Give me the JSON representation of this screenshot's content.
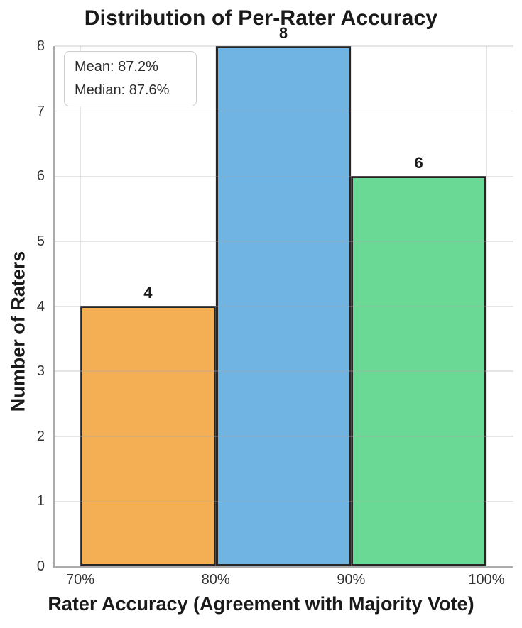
{
  "chart_data": {
    "type": "bar",
    "title": "Distribution of Per-Rater Accuracy",
    "xlabel": "Rater Accuracy (Agreement with Majority Vote)",
    "ylabel": "Number of Raters",
    "x_tick_labels": [
      "70%",
      "80%",
      "90%",
      "100%"
    ],
    "y_ticks": [
      0,
      1,
      2,
      3,
      4,
      5,
      6,
      7,
      8
    ],
    "ylim": [
      0,
      8
    ],
    "grid": "both",
    "bars": [
      {
        "bin_start": "70%",
        "bin_end": "80%",
        "count": 4,
        "color": "#F4AF55"
      },
      {
        "bin_start": "80%",
        "bin_end": "90%",
        "count": 8,
        "color": "#6FB4E3"
      },
      {
        "bin_start": "90%",
        "bin_end": "100%",
        "count": 6,
        "color": "#6AD996"
      }
    ],
    "annotation": {
      "mean": "Mean: 87.2%",
      "median": "Median: 87.6%"
    },
    "style": {
      "bar_edge_color": "#262626",
      "spine_color": "#ababab",
      "grid_color": "#ececec",
      "text_color": "#1a1a1a"
    }
  }
}
